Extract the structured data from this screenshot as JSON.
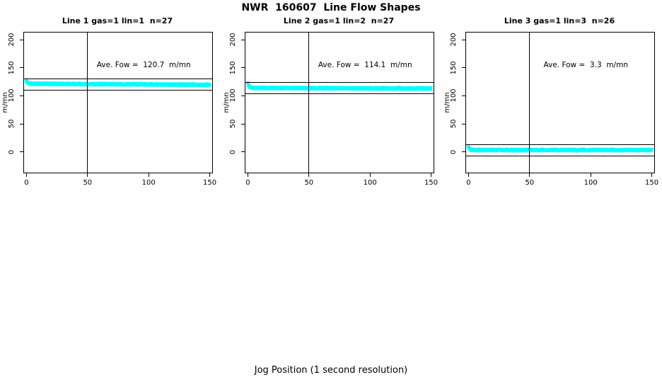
{
  "figure": {
    "main_title": "NWR  160607  Line Flow Shapes",
    "x_axis_label": "Jog Position (1 second resolution)"
  },
  "colors": {
    "trace": "#00FFFF",
    "axis": "#000000",
    "background": "#FFFFFF"
  },
  "chart_data": [
    {
      "type": "scatter",
      "title": "Line 1 gas=1 lin=1  n=27",
      "annotation": "Ave. Fow =  120.7  m/mn",
      "ave_flow": 120.7,
      "n_jogs": 27,
      "ylabel": "m/mn",
      "x_ticks": [
        0,
        50,
        100,
        150
      ],
      "y_ticks": [
        0,
        50,
        100,
        150,
        200
      ],
      "xlim": [
        -2,
        152
      ],
      "ylim": [
        -37,
        213
      ],
      "vline_x": 50,
      "hlines": [
        130.7,
        110.7
      ],
      "annotation_x": 96,
      "annotation_y": 155,
      "trace": {
        "level": 120.7,
        "start_spike": 4,
        "drift": -2,
        "jitter": 1.6,
        "x_start": 0,
        "x_end": 150
      }
    },
    {
      "type": "scatter",
      "title": "Line 2 gas=1 lin=2  n=27",
      "annotation": "Ave. Fow =  114.1  m/mn",
      "ave_flow": 114.1,
      "n_jogs": 27,
      "ylabel": "m/mn",
      "x_ticks": [
        0,
        50,
        100,
        150
      ],
      "y_ticks": [
        0,
        50,
        100,
        150,
        200
      ],
      "xlim": [
        -2,
        152
      ],
      "ylim": [
        -37,
        213
      ],
      "vline_x": 50,
      "hlines": [
        124.1,
        104.1
      ],
      "annotation_x": 96,
      "annotation_y": 155,
      "trace": {
        "level": 113.6,
        "start_spike": 9,
        "drift": -1,
        "jitter": 1.6,
        "x_start": 0,
        "x_end": 150
      }
    },
    {
      "type": "scatter",
      "title": "Line 3 gas=1 lin=3  n=26",
      "annotation": "Ave. Fow =  3.3  m/mn",
      "ave_flow": 3.3,
      "n_jogs": 26,
      "ylabel": "m/mn",
      "x_ticks": [
        0,
        50,
        100,
        150
      ],
      "y_ticks": [
        0,
        50,
        100,
        150,
        200
      ],
      "xlim": [
        -2,
        152
      ],
      "ylim": [
        -37,
        213
      ],
      "vline_x": 50,
      "hlines": [
        13.3,
        -6.7
      ],
      "annotation_x": 96,
      "annotation_y": 155,
      "trace": {
        "level": 3.3,
        "start_spike": 5,
        "drift": 0,
        "jitter": 1.6,
        "x_start": 0,
        "x_end": 150
      }
    }
  ]
}
